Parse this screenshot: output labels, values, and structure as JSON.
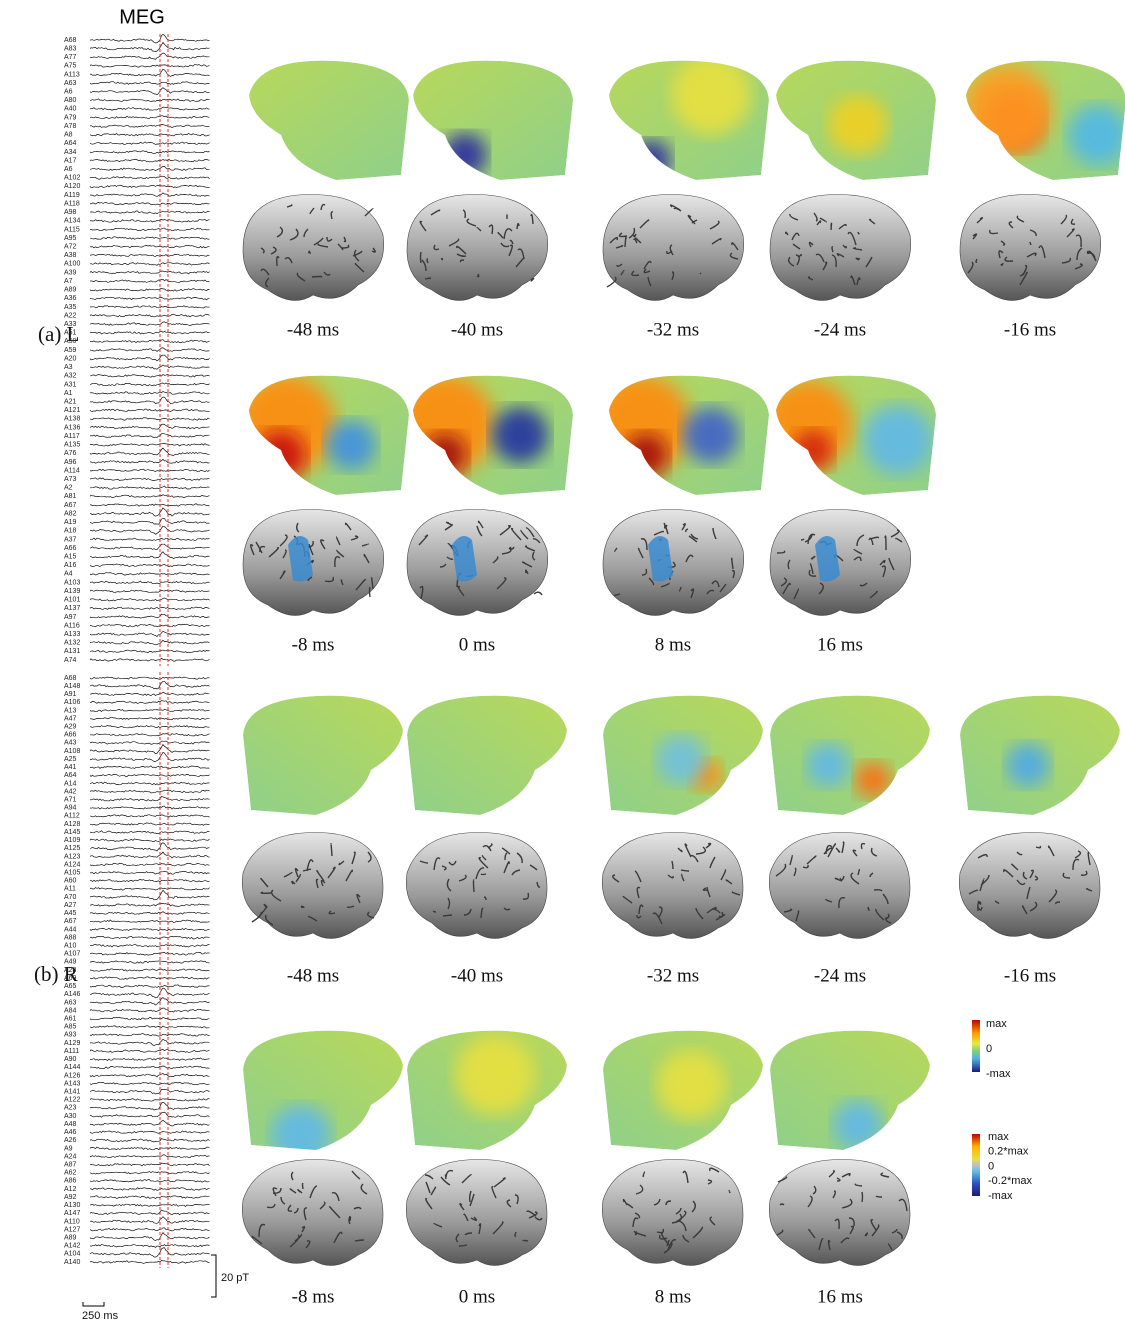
{
  "figure": {
    "title": "MEG",
    "panels": [
      {
        "label": "(a) L",
        "channels": [
          "A68",
          "A83",
          "A77",
          "A75",
          "A113",
          "A63",
          "A6",
          "A80",
          "A40",
          "A79",
          "A78",
          "A8",
          "A64",
          "A34",
          "A17",
          "A6",
          "A102",
          "A120",
          "A119",
          "A118",
          "A98",
          "A134",
          "A115",
          "A95",
          "A72",
          "A38",
          "A100",
          "A39",
          "A7",
          "A89",
          "A36",
          "A35",
          "A22",
          "A33",
          "A51",
          "A50",
          "A59",
          "A20",
          "A3",
          "A32",
          "A31",
          "A1",
          "A21",
          "A121",
          "A138",
          "A136",
          "A117",
          "A135",
          "A76",
          "A96",
          "A114",
          "A73",
          "A2",
          "A81",
          "A67",
          "A82",
          "A19",
          "A18",
          "A37",
          "A66",
          "A15",
          "A16",
          "A4",
          "A103",
          "A139",
          "A101",
          "A137",
          "A97",
          "A116",
          "A133",
          "A132",
          "A131",
          "A74"
        ],
        "times": [
          "-48 ms",
          "-40 ms",
          "-32 ms",
          "-24 ms",
          "-16 ms",
          "-8 ms",
          "0 ms",
          "8 ms",
          "16 ms"
        ]
      },
      {
        "label": "(b) R",
        "channels": [
          "A68",
          "A148",
          "A91",
          "A106",
          "A13",
          "A47",
          "A29",
          "A66",
          "A43",
          "A108",
          "A25",
          "A41",
          "A64",
          "A14",
          "A42",
          "A71",
          "A94",
          "A112",
          "A128",
          "A145",
          "A109",
          "A125",
          "A123",
          "A124",
          "A105",
          "A60",
          "A11",
          "A70",
          "A27",
          "A45",
          "A67",
          "A44",
          "A88",
          "A10",
          "A107",
          "A49",
          "A28",
          "A69",
          "A65",
          "A146",
          "A63",
          "A84",
          "A61",
          "A85",
          "A93",
          "A129",
          "A111",
          "A90",
          "A144",
          "A126",
          "A143",
          "A141",
          "A122",
          "A23",
          "A30",
          "A48",
          "A46",
          "A26",
          "A9",
          "A24",
          "A87",
          "A62",
          "A86",
          "A12",
          "A92",
          "A130",
          "A147",
          "A110",
          "A127",
          "A89",
          "A142",
          "A104",
          "A140"
        ],
        "times": [
          "-48 ms",
          "-40 ms",
          "-32 ms",
          "-24 ms",
          "-16 ms",
          "-8 ms",
          "0 ms",
          "8 ms",
          "16 ms"
        ]
      }
    ],
    "scale": {
      "amplitude": "20 pT",
      "time": "250 ms"
    },
    "colorbars": [
      {
        "labels": [
          "max",
          "0",
          "-max"
        ]
      },
      {
        "labels": [
          "max",
          "0.2*max",
          "0",
          "-0.2*max",
          "-max"
        ]
      }
    ]
  }
}
